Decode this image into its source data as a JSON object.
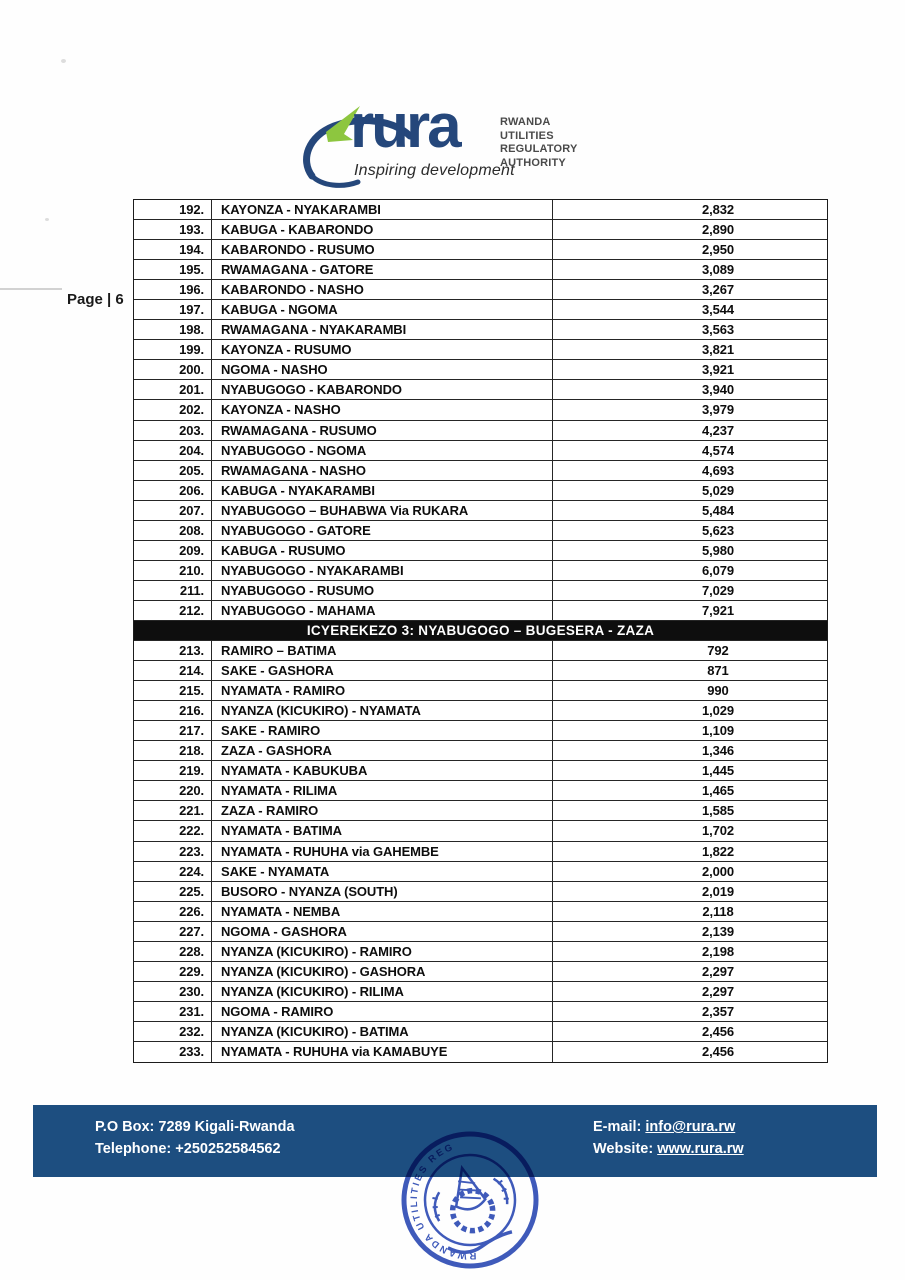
{
  "header": {
    "logo_text": "rura",
    "tagline": "Inspiring development",
    "authority_lines": [
      "RWANDA",
      "UTILITIES",
      "REGULATORY",
      "AUTHORITY"
    ],
    "colors": {
      "logo_navy": "#25477b",
      "logo_green": "#8dc63f",
      "footer_band": "#1d4e80",
      "section_header_bg": "#0e0e0e",
      "stamp_blue": "#2e4cb5"
    }
  },
  "page_label": "Page | 6",
  "table": {
    "segments": [
      {
        "rows": [
          {
            "no": "192.",
            "route": "KAYONZA - NYAKARAMBI",
            "fare": "2,832"
          },
          {
            "no": "193.",
            "route": "KABUGA - KABARONDO",
            "fare": "2,890"
          },
          {
            "no": "194.",
            "route": "KABARONDO - RUSUMO",
            "fare": "2,950"
          },
          {
            "no": "195.",
            "route": "RWAMAGANA - GATORE",
            "fare": "3,089"
          },
          {
            "no": "196.",
            "route": "KABARONDO - NASHO",
            "fare": "3,267"
          },
          {
            "no": "197.",
            "route": "KABUGA - NGOMA",
            "fare": "3,544"
          },
          {
            "no": "198.",
            "route": "RWAMAGANA - NYAKARAMBI",
            "fare": "3,563"
          },
          {
            "no": "199.",
            "route": "KAYONZA - RUSUMO",
            "fare": "3,821"
          },
          {
            "no": "200.",
            "route": "NGOMA - NASHO",
            "fare": "3,921"
          },
          {
            "no": "201.",
            "route": "NYABUGOGO - KABARONDO",
            "fare": "3,940"
          },
          {
            "no": "202.",
            "route": "KAYONZA - NASHO",
            "fare": "3,979"
          },
          {
            "no": "203.",
            "route": "RWAMAGANA - RUSUMO",
            "fare": "4,237"
          },
          {
            "no": "204.",
            "route": "NYABUGOGO - NGOMA",
            "fare": "4,574"
          },
          {
            "no": "205.",
            "route": "RWAMAGANA - NASHO",
            "fare": "4,693"
          },
          {
            "no": "206.",
            "route": "KABUGA - NYAKARAMBI",
            "fare": "5,029"
          },
          {
            "no": "207.",
            "route": "NYABUGOGO – BUHABWA Via RUKARA",
            "fare": "5,484"
          },
          {
            "no": "208.",
            "route": "NYABUGOGO - GATORE",
            "fare": "5,623"
          },
          {
            "no": "209.",
            "route": "KABUGA - RUSUMO",
            "fare": "5,980"
          },
          {
            "no": "210.",
            "route": "NYABUGOGO - NYAKARAMBI",
            "fare": "6,079"
          },
          {
            "no": "211.",
            "route": "NYABUGOGO - RUSUMO",
            "fare": "7,029"
          },
          {
            "no": "212.",
            "route": "NYABUGOGO - MAHAMA",
            "fare": "7,921"
          }
        ]
      },
      {
        "section_header": "ICYEREKEZO 3: NYABUGOGO – BUGESERA - ZAZA"
      },
      {
        "rows": [
          {
            "no": "213.",
            "route": "RAMIRO – BATIMA",
            "fare": "792"
          },
          {
            "no": "214.",
            "route": "SAKE - GASHORA",
            "fare": "871"
          },
          {
            "no": "215.",
            "route": "NYAMATA - RAMIRO",
            "fare": "990"
          },
          {
            "no": "216.",
            "route": "NYANZA (KICUKIRO) - NYAMATA",
            "fare": "1,029"
          },
          {
            "no": "217.",
            "route": "SAKE - RAMIRO",
            "fare": "1,109"
          },
          {
            "no": "218.",
            "route": "ZAZA - GASHORA",
            "fare": "1,346"
          },
          {
            "no": "219.",
            "route": "NYAMATA - KABUKUBA",
            "fare": "1,445"
          },
          {
            "no": "220.",
            "route": "NYAMATA - RILIMA",
            "fare": "1,465"
          },
          {
            "no": "221.",
            "route": "ZAZA - RAMIRO",
            "fare": "1,585"
          },
          {
            "no": "222.",
            "route": "NYAMATA - BATIMA",
            "fare": "1,702"
          },
          {
            "no": "223.",
            "route": "NYAMATA - RUHUHA via GAHEMBE",
            "fare": "1,822"
          },
          {
            "no": "224.",
            "route": "SAKE - NYAMATA",
            "fare": "2,000"
          },
          {
            "no": "225.",
            "route": "BUSORO - NYANZA (SOUTH)",
            "fare": "2,019"
          },
          {
            "no": "226.",
            "route": "NYAMATA - NEMBA",
            "fare": "2,118"
          },
          {
            "no": "227.",
            "route": "NGOMA - GASHORA",
            "fare": "2,139"
          },
          {
            "no": "228.",
            "route": "NYANZA (KICUKIRO) - RAMIRO",
            "fare": "2,198"
          },
          {
            "no": "229.",
            "route": "NYANZA (KICUKIRO) - GASHORA",
            "fare": "2,297"
          },
          {
            "no": "230.",
            "route": "NYANZA (KICUKIRO) - RILIMA",
            "fare": "2,297"
          },
          {
            "no": "231.",
            "route": "NGOMA - RAMIRO",
            "fare": "2,357"
          },
          {
            "no": "232.",
            "route": "NYANZA (KICUKIRO) - BATIMA",
            "fare": "2,456"
          },
          {
            "no": "233.",
            "route": "NYAMATA - RUHUHA via KAMABUYE",
            "fare": "2,456"
          }
        ]
      }
    ]
  },
  "footer": {
    "pobox": "P.O Box: 7289 Kigali-Rwanda",
    "telephone": "Telephone: +250252584562",
    "email_label": "E-mail:",
    "email": "info@rura.rw",
    "website_label": "Website:",
    "website": "www.rura.rw"
  },
  "stamp": {
    "ring_text": "RWANDA UTILITIES REGULATORY AUTHORITY"
  }
}
